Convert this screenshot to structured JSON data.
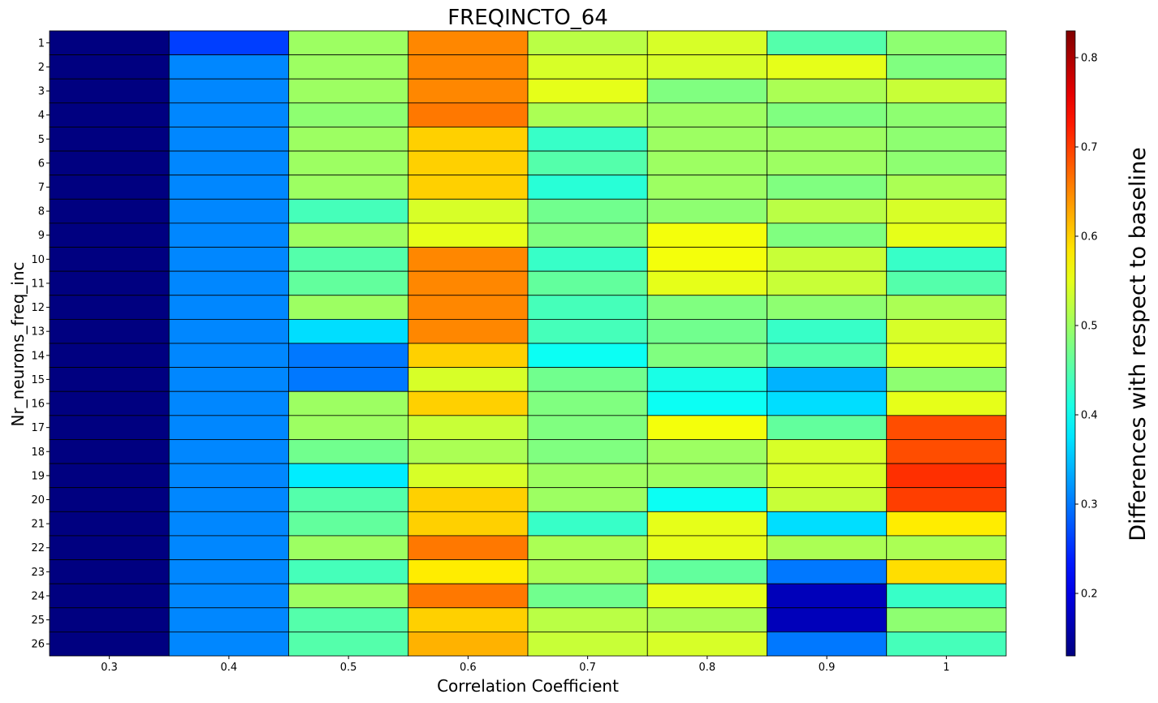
{
  "chart_data": {
    "type": "heatmap",
    "title": "FREQINCTO_64",
    "xlabel": "Correlation Coefficient",
    "ylabel": "Nr_neurons_freq_inc",
    "colorbar_label": "Differences with respect to baseline",
    "colormap": "jet",
    "vmin": 0.13,
    "vmax": 0.83,
    "colorbar_ticks": [
      0.2,
      0.3,
      0.4,
      0.5,
      0.6,
      0.7,
      0.8
    ],
    "x_categories": [
      "0.3",
      "0.4",
      "0.5",
      "0.6",
      "0.7",
      "0.8",
      "0.9",
      "1"
    ],
    "y_categories": [
      "1",
      "2",
      "3",
      "4",
      "5",
      "6",
      "7",
      "8",
      "9",
      "10",
      "11",
      "12",
      "13",
      "14",
      "15",
      "16",
      "17",
      "18",
      "19",
      "20",
      "21",
      "22",
      "23",
      "24",
      "25",
      "26"
    ],
    "values": [
      [
        0.13,
        0.26,
        0.5,
        0.65,
        0.52,
        0.54,
        0.45,
        0.49
      ],
      [
        0.13,
        0.31,
        0.5,
        0.65,
        0.54,
        0.54,
        0.55,
        0.48
      ],
      [
        0.13,
        0.31,
        0.5,
        0.65,
        0.55,
        0.48,
        0.51,
        0.53
      ],
      [
        0.13,
        0.31,
        0.49,
        0.66,
        0.51,
        0.5,
        0.48,
        0.49
      ],
      [
        0.13,
        0.31,
        0.5,
        0.6,
        0.43,
        0.5,
        0.5,
        0.49
      ],
      [
        0.13,
        0.31,
        0.5,
        0.6,
        0.45,
        0.5,
        0.5,
        0.49
      ],
      [
        0.13,
        0.31,
        0.5,
        0.6,
        0.42,
        0.5,
        0.48,
        0.51
      ],
      [
        0.13,
        0.31,
        0.44,
        0.54,
        0.47,
        0.49,
        0.52,
        0.54
      ],
      [
        0.13,
        0.31,
        0.5,
        0.55,
        0.48,
        0.56,
        0.48,
        0.55
      ],
      [
        0.13,
        0.31,
        0.45,
        0.65,
        0.43,
        0.56,
        0.53,
        0.43
      ],
      [
        0.13,
        0.31,
        0.46,
        0.65,
        0.46,
        0.55,
        0.53,
        0.45
      ],
      [
        0.13,
        0.31,
        0.5,
        0.65,
        0.44,
        0.48,
        0.49,
        0.51
      ],
      [
        0.13,
        0.31,
        0.37,
        0.65,
        0.44,
        0.47,
        0.43,
        0.54
      ],
      [
        0.13,
        0.31,
        0.3,
        0.6,
        0.4,
        0.48,
        0.45,
        0.55
      ],
      [
        0.13,
        0.31,
        0.3,
        0.54,
        0.47,
        0.41,
        0.34,
        0.49
      ],
      [
        0.13,
        0.31,
        0.5,
        0.6,
        0.48,
        0.4,
        0.37,
        0.55
      ],
      [
        0.13,
        0.31,
        0.5,
        0.53,
        0.48,
        0.56,
        0.46,
        0.69
      ],
      [
        0.13,
        0.31,
        0.47,
        0.51,
        0.48,
        0.5,
        0.54,
        0.69
      ],
      [
        0.13,
        0.31,
        0.38,
        0.54,
        0.5,
        0.5,
        0.54,
        0.71
      ],
      [
        0.13,
        0.31,
        0.45,
        0.6,
        0.5,
        0.4,
        0.53,
        0.7
      ],
      [
        0.13,
        0.31,
        0.46,
        0.6,
        0.43,
        0.55,
        0.37,
        0.58
      ],
      [
        0.13,
        0.31,
        0.5,
        0.66,
        0.51,
        0.55,
        0.51,
        0.51
      ],
      [
        0.13,
        0.31,
        0.44,
        0.58,
        0.51,
        0.46,
        0.3,
        0.59
      ],
      [
        0.13,
        0.31,
        0.5,
        0.66,
        0.47,
        0.55,
        0.17,
        0.43
      ],
      [
        0.13,
        0.31,
        0.45,
        0.6,
        0.52,
        0.51,
        0.17,
        0.49
      ],
      [
        0.13,
        0.31,
        0.45,
        0.62,
        0.53,
        0.54,
        0.3,
        0.44
      ]
    ]
  }
}
